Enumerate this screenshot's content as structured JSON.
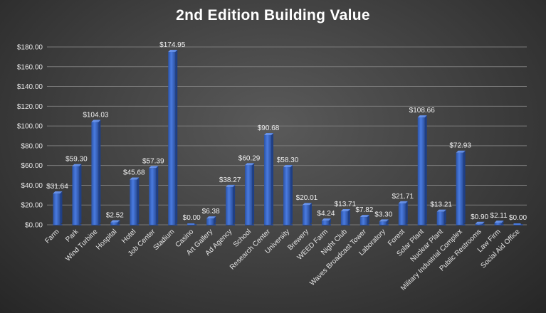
{
  "chart_data": {
    "type": "bar",
    "title": "2nd Edition Building Value",
    "xlabel": "",
    "ylabel": "",
    "ylim": [
      0,
      180
    ],
    "yticks": [
      "$0.00",
      "$20.00",
      "$40.00",
      "$60.00",
      "$80.00",
      "$100.00",
      "$120.00",
      "$140.00",
      "$160.00",
      "$180.00"
    ],
    "grid": true,
    "legend": "none",
    "bar_color": "#3f6fd0",
    "categories": [
      "Farm",
      "Park",
      "Wind Turbine",
      "Hospital",
      "Hotel",
      "Job Center",
      "Stadium",
      "Casino",
      "Art Gallery",
      "Ad Agency",
      "School",
      "Research Center",
      "University",
      "Brewery",
      "WEED Farm",
      "Night Club",
      "Waves Broadcast Tower",
      "Laboratory",
      "Forest",
      "Solar Plant",
      "Nuclear Plant",
      "Military Industrial Complex",
      "Public Restrooms",
      "Law Firm",
      "Social Aid Office"
    ],
    "values": [
      31.64,
      59.3,
      104.03,
      2.52,
      45.68,
      57.39,
      174.95,
      0.0,
      6.38,
      38.27,
      60.29,
      90.68,
      58.3,
      20.01,
      4.24,
      13.71,
      7.82,
      3.3,
      21.71,
      108.66,
      13.21,
      72.93,
      0.9,
      2.11,
      0.0
    ],
    "data_labels": [
      "$31.64",
      "$59.30",
      "$104.03",
      "$2.52",
      "$45.68",
      "$57.39",
      "$174.95",
      "$0.00",
      "$6.38",
      "$38.27",
      "$60.29",
      "$90.68",
      "$58.30",
      "$20.01",
      "$4.24",
      "$13.71",
      "$7.82",
      "$3.30",
      "$21.71",
      "$108.66",
      "$13.21",
      "$72.93",
      "$0.90",
      "$2.11",
      "$0.00"
    ]
  }
}
